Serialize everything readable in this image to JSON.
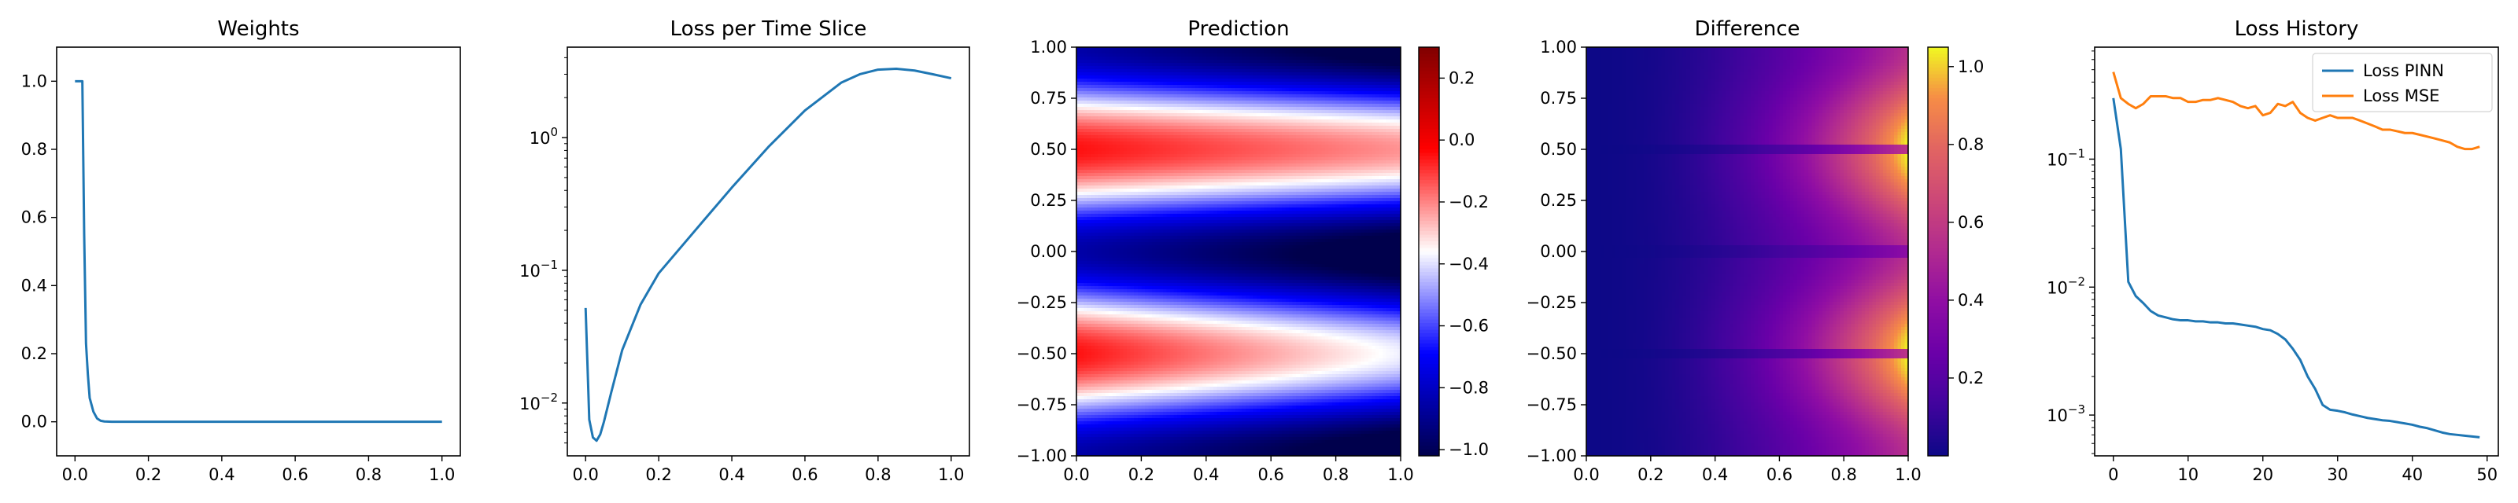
{
  "colors": {
    "blue": "#1f77b4",
    "orange": "#ff7f0e"
  },
  "chart_data": [
    {
      "type": "line",
      "title": "Weights",
      "xlim": [
        -0.05,
        1.05
      ],
      "ylim": [
        -0.1,
        1.1
      ],
      "xticks": [
        0.0,
        0.2,
        0.4,
        0.6,
        0.8,
        1.0
      ],
      "xticklabels": [
        "0.0",
        "0.2",
        "0.4",
        "0.6",
        "0.8",
        "1.0"
      ],
      "yticks": [
        0.0,
        0.2,
        0.4,
        0.6,
        0.8,
        1.0
      ],
      "yticklabels": [
        "0.0",
        "0.2",
        "0.4",
        "0.6",
        "0.8",
        "1.0"
      ],
      "series": [
        {
          "x": [
            0.0,
            0.01,
            0.02,
            0.025,
            0.03,
            0.035,
            0.04,
            0.05,
            0.06,
            0.07,
            0.08,
            0.1,
            0.2,
            0.4,
            0.6,
            0.8,
            1.0
          ],
          "y": [
            1.0,
            1.0,
            1.0,
            0.55,
            0.23,
            0.14,
            0.07,
            0.03,
            0.01,
            0.003,
            0.001,
            0.0,
            0.0,
            0.0,
            0.0,
            0.0,
            0.0
          ]
        }
      ]
    },
    {
      "type": "line",
      "title": "Loss per Time Slice",
      "yscale": "log",
      "xlim": [
        -0.05,
        1.05
      ],
      "ylim": [
        0.004,
        4.8
      ],
      "xticks": [
        0.0,
        0.2,
        0.4,
        0.6,
        0.8,
        1.0
      ],
      "xticklabels": [
        "0.0",
        "0.2",
        "0.4",
        "0.6",
        "0.8",
        "1.0"
      ],
      "yticks": [
        0.01,
        0.1,
        1
      ],
      "yticklabels": [
        "10",
        "10",
        "10"
      ],
      "ytick_exponents": [
        "−2",
        "−1",
        "0"
      ],
      "series": [
        {
          "x": [
            0.0,
            0.01,
            0.02,
            0.03,
            0.04,
            0.05,
            0.07,
            0.1,
            0.15,
            0.2,
            0.3,
            0.4,
            0.5,
            0.6,
            0.7,
            0.75,
            0.8,
            0.85,
            0.9,
            0.95,
            1.0
          ],
          "y": [
            0.052,
            0.0075,
            0.0055,
            0.0052,
            0.0058,
            0.0072,
            0.012,
            0.025,
            0.055,
            0.095,
            0.2,
            0.42,
            0.85,
            1.6,
            2.6,
            3.0,
            3.25,
            3.3,
            3.2,
            3.0,
            2.8
          ]
        }
      ]
    },
    {
      "type": "heatmap",
      "title": "Prediction",
      "colormap": "seismic",
      "xlim": [
        0.0,
        1.0
      ],
      "ylim": [
        -1.0,
        1.0
      ],
      "xticks": [
        0.0,
        0.2,
        0.4,
        0.6,
        0.8,
        1.0
      ],
      "xticklabels": [
        "0.0",
        "0.2",
        "0.4",
        "0.6",
        "0.8",
        "1.0"
      ],
      "yticks": [
        -1.0,
        -0.75,
        -0.5,
        -0.25,
        0.0,
        0.25,
        0.5,
        0.75,
        1.0
      ],
      "yticklabels": [
        "−1.00",
        "−0.75",
        "−0.50",
        "−0.25",
        "0.00",
        "0.25",
        "0.50",
        "0.75",
        "1.00"
      ],
      "colorbar": {
        "range": [
          -1.02,
          0.3
        ],
        "ticks": [
          0.2,
          0.0,
          -0.2,
          -0.4,
          -0.6,
          -0.8,
          -1.0
        ],
        "ticklabels": [
          "0.2",
          "0.0",
          "−0.2",
          "−0.4",
          "−0.6",
          "−0.8",
          "−1.0"
        ]
      }
    },
    {
      "type": "heatmap",
      "title": "Difference",
      "colormap": "plasma",
      "xlim": [
        0.0,
        1.0
      ],
      "ylim": [
        -1.0,
        1.0
      ],
      "xticks": [
        0.0,
        0.2,
        0.4,
        0.6,
        0.8,
        1.0
      ],
      "xticklabels": [
        "0.0",
        "0.2",
        "0.4",
        "0.6",
        "0.8",
        "1.0"
      ],
      "yticks": [
        -1.0,
        -0.75,
        -0.5,
        -0.25,
        0.0,
        0.25,
        0.5,
        0.75,
        1.0
      ],
      "yticklabels": [
        "−1.00",
        "−0.75",
        "−0.50",
        "−0.25",
        "0.00",
        "0.25",
        "0.50",
        "0.75",
        "1.00"
      ],
      "colorbar": {
        "range": [
          0.0,
          1.05
        ],
        "ticks": [
          1.0,
          0.8,
          0.6,
          0.4,
          0.2
        ],
        "ticklabels": [
          "1.0",
          "0.8",
          "0.6",
          "0.4",
          "0.2"
        ]
      }
    },
    {
      "type": "line",
      "title": "Loss History",
      "yscale": "log",
      "xlim": [
        -2.5,
        51.5
      ],
      "ylim": [
        0.00048,
        0.75
      ],
      "xticks": [
        0,
        10,
        20,
        30,
        40,
        50
      ],
      "xticklabels": [
        "0",
        "10",
        "20",
        "30",
        "40",
        "50"
      ],
      "yticks": [
        0.001,
        0.01,
        0.1
      ],
      "yticklabels": [
        "10",
        "10",
        "10"
      ],
      "ytick_exponents": [
        "−3",
        "−2",
        "−1"
      ],
      "legend": "top-right",
      "series": [
        {
          "name": "Loss PINN",
          "x": [
            0,
            1,
            2,
            3,
            4,
            5,
            6,
            7,
            8,
            9,
            10,
            11,
            12,
            13,
            14,
            15,
            16,
            17,
            18,
            19,
            20,
            21,
            22,
            23,
            24,
            25,
            26,
            27,
            28,
            29,
            30,
            31,
            32,
            33,
            34,
            35,
            36,
            37,
            38,
            39,
            40,
            41,
            42,
            43,
            44,
            45,
            46,
            47,
            48,
            49
          ],
          "y": [
            0.3,
            0.12,
            0.011,
            0.0085,
            0.0075,
            0.0065,
            0.006,
            0.0058,
            0.0056,
            0.0055,
            0.0055,
            0.0054,
            0.0054,
            0.0053,
            0.0053,
            0.0052,
            0.0052,
            0.0051,
            0.005,
            0.0049,
            0.0047,
            0.0046,
            0.0043,
            0.0039,
            0.0033,
            0.0027,
            0.002,
            0.0016,
            0.0012,
            0.0011,
            0.00108,
            0.00105,
            0.00101,
            0.00098,
            0.00095,
            0.00093,
            0.00091,
            0.0009,
            0.00088,
            0.00086,
            0.00084,
            0.00081,
            0.00079,
            0.00076,
            0.00073,
            0.00071,
            0.0007,
            0.00069,
            0.00068,
            0.00067
          ]
        },
        {
          "name": "Loss MSE",
          "x": [
            0,
            1,
            2,
            3,
            4,
            5,
            6,
            7,
            8,
            9,
            10,
            11,
            12,
            13,
            14,
            15,
            16,
            17,
            18,
            19,
            20,
            21,
            22,
            23,
            24,
            25,
            26,
            27,
            28,
            29,
            30,
            31,
            32,
            33,
            34,
            35,
            36,
            37,
            38,
            39,
            40,
            41,
            42,
            43,
            44,
            45,
            46,
            47,
            48,
            49
          ],
          "y": [
            0.48,
            0.3,
            0.27,
            0.25,
            0.27,
            0.31,
            0.31,
            0.31,
            0.3,
            0.3,
            0.28,
            0.28,
            0.29,
            0.29,
            0.3,
            0.29,
            0.28,
            0.26,
            0.25,
            0.26,
            0.22,
            0.23,
            0.27,
            0.26,
            0.28,
            0.23,
            0.21,
            0.2,
            0.21,
            0.22,
            0.21,
            0.21,
            0.21,
            0.2,
            0.19,
            0.18,
            0.17,
            0.17,
            0.165,
            0.16,
            0.16,
            0.155,
            0.15,
            0.145,
            0.14,
            0.135,
            0.125,
            0.12,
            0.12,
            0.125
          ]
        }
      ]
    }
  ]
}
